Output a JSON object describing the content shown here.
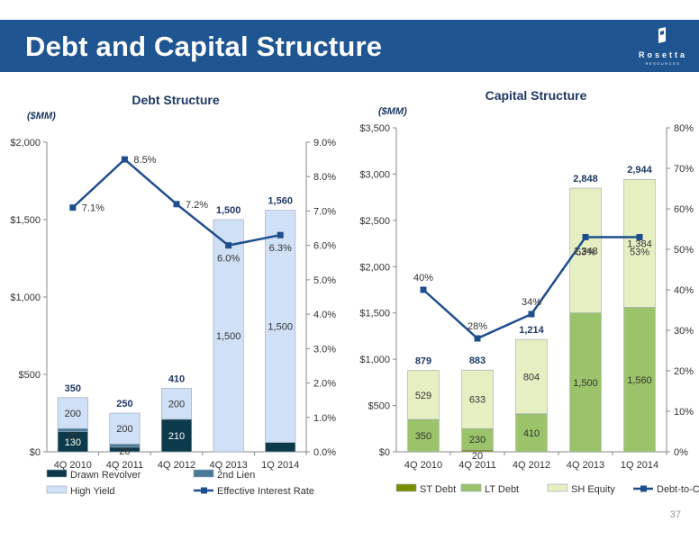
{
  "header": {
    "title": "Debt and Capital Structure",
    "logo_name": "Rosetta",
    "logo_sub": "RESOURCES"
  },
  "page_number": "37",
  "colors": {
    "header_bg": "#1f5590",
    "drawn_revolver": "#0d3a4a",
    "second_lien": "#4a7a99",
    "high_yield": "#cfe0f7",
    "st_debt": "#7a8c00",
    "lt_debt": "#9bc36a",
    "sh_equity": "#e6efc2",
    "line": "#1f4e8c"
  },
  "chart_data": [
    {
      "type": "bar",
      "stacked": true,
      "title": "Debt Structure",
      "unit_label": "($MM)",
      "categories": [
        "4Q 2010",
        "4Q 2011",
        "4Q 2012",
        "4Q 2013",
        "1Q 2014"
      ],
      "ylim": [
        0,
        2000
      ],
      "y_ticks": [
        "$0",
        "$500",
        "$1,000",
        "$1,500",
        "$2,000"
      ],
      "y2lim": [
        0,
        9
      ],
      "y2_ticks": [
        "0.0%",
        "1.0%",
        "2.0%",
        "3.0%",
        "4.0%",
        "5.0%",
        "6.0%",
        "7.0%",
        "8.0%",
        "9.0%"
      ],
      "series": [
        {
          "name": "Drawn Revolver",
          "values": [
            130,
            30,
            210,
            0,
            60
          ],
          "labels": [
            "130",
            "30",
            "210",
            "",
            "60"
          ]
        },
        {
          "name": "2nd Lien",
          "values": [
            20,
            20,
            0,
            0,
            0
          ],
          "labels": [
            "20",
            "20",
            "",
            "",
            ""
          ]
        },
        {
          "name": "High Yield",
          "values": [
            200,
            200,
            200,
            1500,
            1500
          ],
          "labels": [
            "200",
            "200",
            "200",
            "1,500",
            "1,500"
          ]
        }
      ],
      "totals": [
        "350",
        "250",
        "410",
        "1,500",
        "1,560"
      ],
      "line": {
        "name": "Effective Interest Rate",
        "values": [
          7.1,
          8.5,
          7.2,
          6.0,
          6.3
        ],
        "labels": [
          "7.1%",
          "8.5%",
          "7.2%",
          "6.0%",
          "6.3%"
        ]
      },
      "legend": [
        "Drawn Revolver",
        "2nd Lien",
        "High Yield",
        "Effective Interest Rate"
      ],
      "legend_position": "bottom"
    },
    {
      "type": "bar",
      "stacked": true,
      "title": "Capital Structure",
      "unit_label": "($MM)",
      "categories": [
        "4Q 2010",
        "4Q 2011",
        "4Q 2012",
        "4Q 2013",
        "1Q 2014"
      ],
      "ylim": [
        0,
        3500
      ],
      "y_ticks": [
        "$0",
        "$500",
        "$1,000",
        "$1,500",
        "$2,000",
        "$2,500",
        "$3,000",
        "$3,500"
      ],
      "y2lim": [
        0,
        80
      ],
      "y2_ticks": [
        "0%",
        "10%",
        "20%",
        "30%",
        "40%",
        "50%",
        "60%",
        "70%",
        "80%"
      ],
      "series": [
        {
          "name": "ST Debt",
          "values": [
            0,
            20,
            0,
            0,
            0
          ],
          "labels": [
            "",
            "20",
            "",
            "",
            ""
          ]
        },
        {
          "name": "LT Debt",
          "values": [
            350,
            230,
            410,
            1500,
            1560
          ],
          "labels": [
            "350",
            "230",
            "410",
            "1,500",
            "1,560"
          ]
        },
        {
          "name": "SH Equity",
          "values": [
            529,
            633,
            804,
            1348,
            1384
          ],
          "labels": [
            "529",
            "633",
            "804",
            "1,348",
            "1,384"
          ]
        }
      ],
      "totals": [
        "879",
        "883",
        "1,214",
        "2,848",
        "2,944"
      ],
      "line": {
        "name": "Debt-to-Cap",
        "values": [
          40,
          28,
          34,
          53,
          53
        ],
        "labels": [
          "40%",
          "28%",
          "34%",
          "53%",
          "53%"
        ]
      },
      "legend": [
        "ST Debt",
        "LT Debt",
        "SH Equity",
        "Debt-to-Cap"
      ],
      "legend_position": "bottom"
    }
  ]
}
